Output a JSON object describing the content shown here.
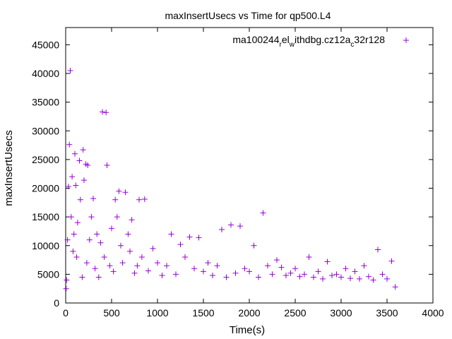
{
  "chart_data": {
    "type": "scatter",
    "title": "maxInsertUsecs vs Time for qp500.L4",
    "xlabel": "Time(s)",
    "ylabel": "maxInsertUsecs",
    "xlim": [
      0,
      4000
    ],
    "ylim": [
      0,
      48000
    ],
    "xticks": [
      0,
      500,
      1000,
      1500,
      2000,
      2500,
      3000,
      3500,
      4000
    ],
    "yticks": [
      0,
      5000,
      10000,
      15000,
      20000,
      25000,
      30000,
      35000,
      40000,
      45000
    ],
    "grid": false,
    "legend_position": "top-right",
    "marker": "plus",
    "series": [
      {
        "name": "ma100244_rel_withdbg.cz12a_c32r128",
        "color": "#9400d3",
        "points": [
          [
            5,
            2500
          ],
          [
            10,
            4000
          ],
          [
            20,
            11000
          ],
          [
            30,
            20300
          ],
          [
            40,
            27600
          ],
          [
            50,
            40500
          ],
          [
            60,
            15000
          ],
          [
            70,
            22000
          ],
          [
            80,
            9000
          ],
          [
            90,
            12000
          ],
          [
            100,
            26000
          ],
          [
            110,
            20500
          ],
          [
            120,
            8000
          ],
          [
            130,
            14000
          ],
          [
            150,
            24800
          ],
          [
            160,
            18000
          ],
          [
            180,
            4500
          ],
          [
            190,
            26700
          ],
          [
            200,
            21400
          ],
          [
            220,
            24200
          ],
          [
            230,
            7000
          ],
          [
            240,
            24000
          ],
          [
            260,
            11000
          ],
          [
            280,
            15000
          ],
          [
            300,
            18200
          ],
          [
            320,
            6000
          ],
          [
            340,
            12000
          ],
          [
            360,
            4500
          ],
          [
            380,
            10500
          ],
          [
            400,
            33300
          ],
          [
            420,
            8000
          ],
          [
            440,
            33200
          ],
          [
            450,
            24000
          ],
          [
            480,
            6500
          ],
          [
            500,
            13000
          ],
          [
            520,
            5500
          ],
          [
            540,
            18000
          ],
          [
            560,
            15000
          ],
          [
            580,
            19500
          ],
          [
            600,
            10000
          ],
          [
            620,
            7000
          ],
          [
            650,
            19300
          ],
          [
            680,
            12000
          ],
          [
            700,
            9000
          ],
          [
            720,
            14500
          ],
          [
            750,
            5200
          ],
          [
            780,
            6500
          ],
          [
            800,
            18000
          ],
          [
            830,
            8000
          ],
          [
            860,
            18100
          ],
          [
            900,
            5600
          ],
          [
            950,
            9500
          ],
          [
            1000,
            7000
          ],
          [
            1050,
            4800
          ],
          [
            1100,
            6500
          ],
          [
            1150,
            12000
          ],
          [
            1200,
            5000
          ],
          [
            1250,
            10200
          ],
          [
            1300,
            8000
          ],
          [
            1350,
            11500
          ],
          [
            1400,
            6000
          ],
          [
            1450,
            11400
          ],
          [
            1500,
            5500
          ],
          [
            1550,
            7000
          ],
          [
            1600,
            4800
          ],
          [
            1650,
            6500
          ],
          [
            1700,
            12800
          ],
          [
            1750,
            4500
          ],
          [
            1800,
            13600
          ],
          [
            1850,
            5200
          ],
          [
            1900,
            13400
          ],
          [
            1950,
            6000
          ],
          [
            2000,
            5500
          ],
          [
            2050,
            10000
          ],
          [
            2100,
            4500
          ],
          [
            2150,
            15700
          ],
          [
            2200,
            6500
          ],
          [
            2250,
            5000
          ],
          [
            2300,
            7500
          ],
          [
            2350,
            6200
          ],
          [
            2400,
            4800
          ],
          [
            2450,
            5200
          ],
          [
            2500,
            6000
          ],
          [
            2550,
            4600
          ],
          [
            2600,
            5000
          ],
          [
            2650,
            8000
          ],
          [
            2700,
            4500
          ],
          [
            2750,
            5500
          ],
          [
            2800,
            4200
          ],
          [
            2850,
            7200
          ],
          [
            2900,
            4800
          ],
          [
            2950,
            5000
          ],
          [
            3000,
            4500
          ],
          [
            3050,
            6000
          ],
          [
            3100,
            4300
          ],
          [
            3150,
            5500
          ],
          [
            3200,
            4200
          ],
          [
            3250,
            6500
          ],
          [
            3300,
            4600
          ],
          [
            3350,
            4000
          ],
          [
            3400,
            9300
          ],
          [
            3450,
            5000
          ],
          [
            3500,
            4200
          ],
          [
            3550,
            7300
          ],
          [
            3590,
            2800
          ]
        ]
      }
    ]
  }
}
